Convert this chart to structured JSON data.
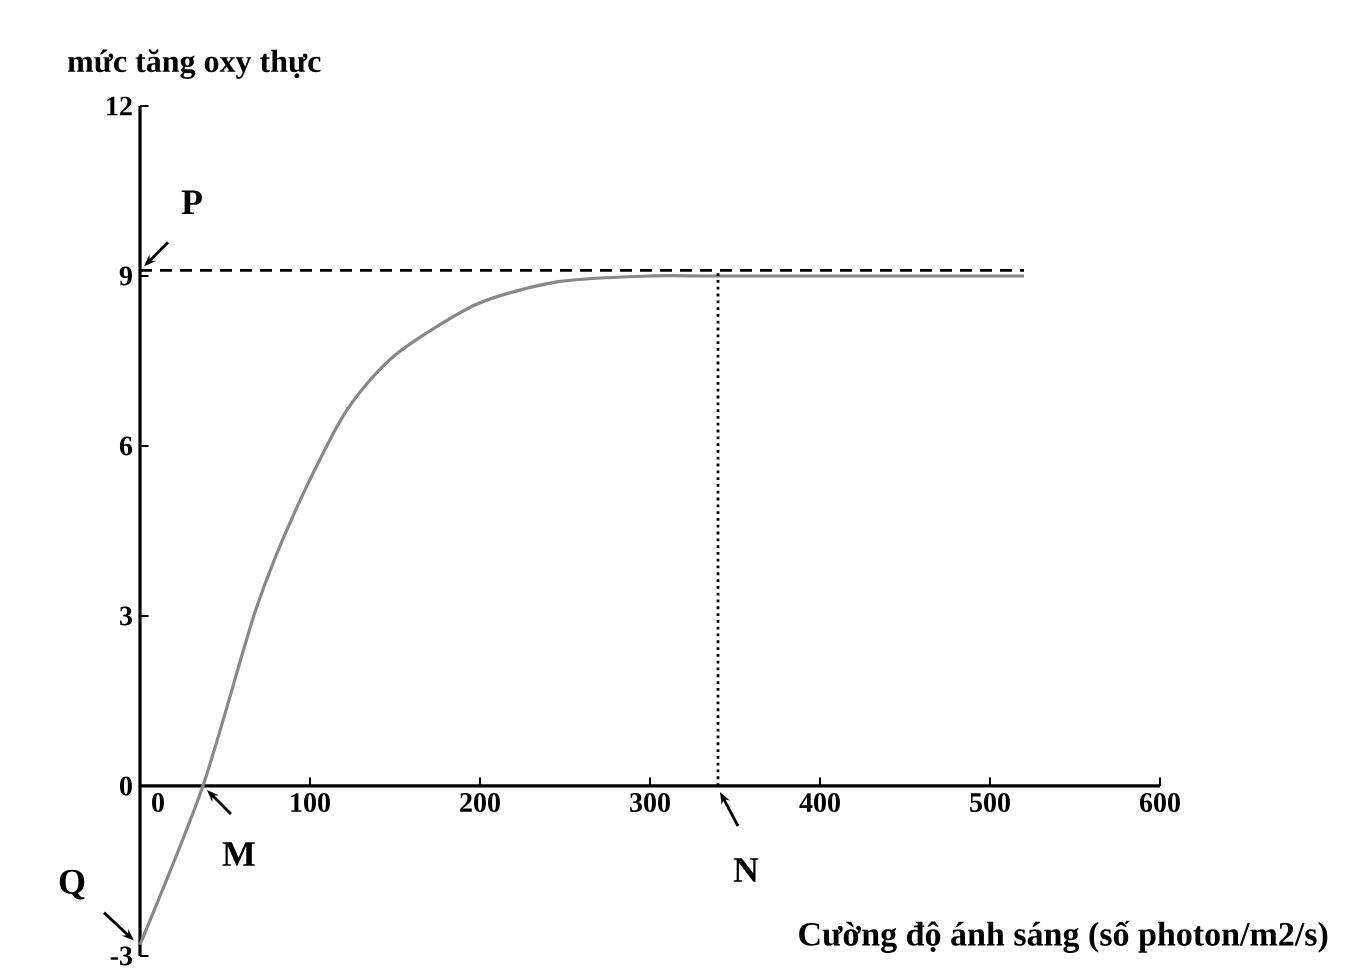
{
  "chart_data": {
    "type": "line",
    "ylabel": "mức tăng oxy thực",
    "xlabel": "Cường độ ánh sáng (số photon/m2/s)",
    "x": [
      0,
      37,
      68,
      92,
      121,
      150,
      198,
      246,
      300,
      337,
      420,
      520
    ],
    "series": [
      {
        "color": "#888888",
        "values": [
          -2.8,
          0,
          3.1,
          4.9,
          6.6,
          7.6,
          8.5,
          8.9,
          9.0,
          9.0,
          9.0,
          9.0
        ]
      }
    ],
    "xlim": [
      0,
      600
    ],
    "ylim": [
      -3,
      12
    ],
    "xticks": [
      0,
      100,
      200,
      300,
      400,
      500,
      600
    ],
    "yticks": [
      -3,
      0,
      3,
      6,
      9,
      12
    ],
    "ref_lines": [
      {
        "axis": "y",
        "value": 9.1,
        "line_style": "dashed",
        "color": "#000000"
      },
      {
        "axis": "x",
        "value": 340,
        "line_style": "dotted",
        "color": "#000000"
      }
    ],
    "annotations": [
      {
        "text": "P",
        "x": 0,
        "y": 9.1
      },
      {
        "text": "Q",
        "x": 0,
        "y": -2.8
      },
      {
        "text": "M",
        "x": 37,
        "y": 0
      },
      {
        "text": "N",
        "x": 340,
        "y": 0
      }
    ],
    "grid": false,
    "marker": "none",
    "line_style": "solid"
  }
}
